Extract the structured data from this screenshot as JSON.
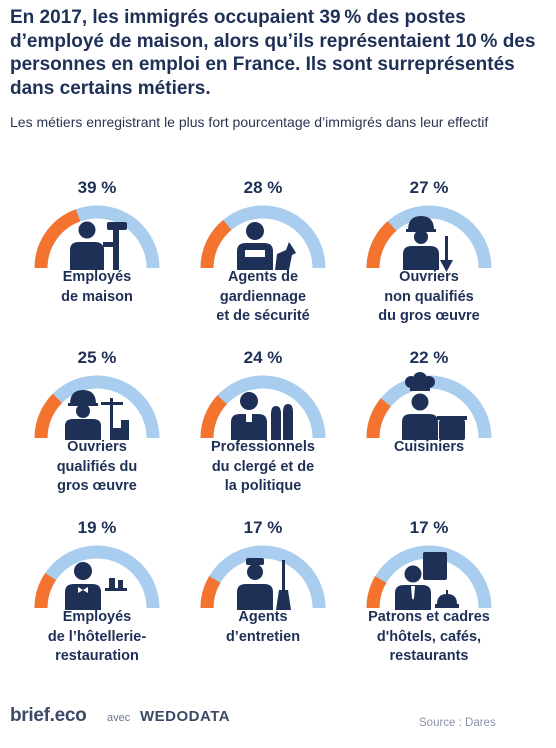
{
  "title": "En 2017, les immigrés occupaient 39 % des postes d’employé de maison, alors qu’ils représentaient 10 % des personnes en emploi en France. Ils sont surreprésentés dans certains métiers.",
  "subtitle": "Les métiers enregistrant le plus fort pourcentage d’immigrés dans leur effectif",
  "colors": {
    "orange": "#f4732f",
    "light_blue": "#a9cdef",
    "navy": "#1f3057"
  },
  "chart_data": {
    "type": "gauge",
    "title": "Les métiers enregistrant le plus fort pourcentage d’immigrés dans leur effectif",
    "unit": "%",
    "scale_max": 100,
    "items": [
      {
        "label": "Employés\nde maison",
        "value": 39,
        "value_label": "39 %",
        "icon": "domestic-worker-icon"
      },
      {
        "label": "Agents de\ngardiennage\net de sécurité",
        "value": 28,
        "value_label": "28 %",
        "icon": "security-guard-icon"
      },
      {
        "label": "Ouvriers\nnon qualifiés\ndu gros œuvre",
        "value": 27,
        "value_label": "27 %",
        "icon": "construction-worker-icon"
      },
      {
        "label": "Ouvriers\nqualifiés du\ngros œuvre",
        "value": 25,
        "value_label": "25 %",
        "icon": "skilled-builder-icon"
      },
      {
        "label": "Professionnels\ndu clergé et de\nla politique",
        "value": 24,
        "value_label": "24 %",
        "icon": "clergy-icon"
      },
      {
        "label": "Cuisiniers",
        "value": 22,
        "value_label": "22 %",
        "icon": "cook-icon"
      },
      {
        "label": "Employés\nde l’hôtellerie-\nrestauration",
        "value": 19,
        "value_label": "19 %",
        "icon": "waiter-icon"
      },
      {
        "label": "Agents\nd’entretien",
        "value": 17,
        "value_label": "17 %",
        "icon": "cleaner-icon"
      },
      {
        "label": "Patrons et cadres\nd'hôtels, cafés,\nrestaurants",
        "value": 17,
        "value_label": "17 %",
        "icon": "hotel-manager-icon"
      }
    ]
  },
  "footer": {
    "logo": "brief.eco",
    "avec": "avec",
    "partner": "WEDODATA",
    "source": "Source : Dares"
  }
}
